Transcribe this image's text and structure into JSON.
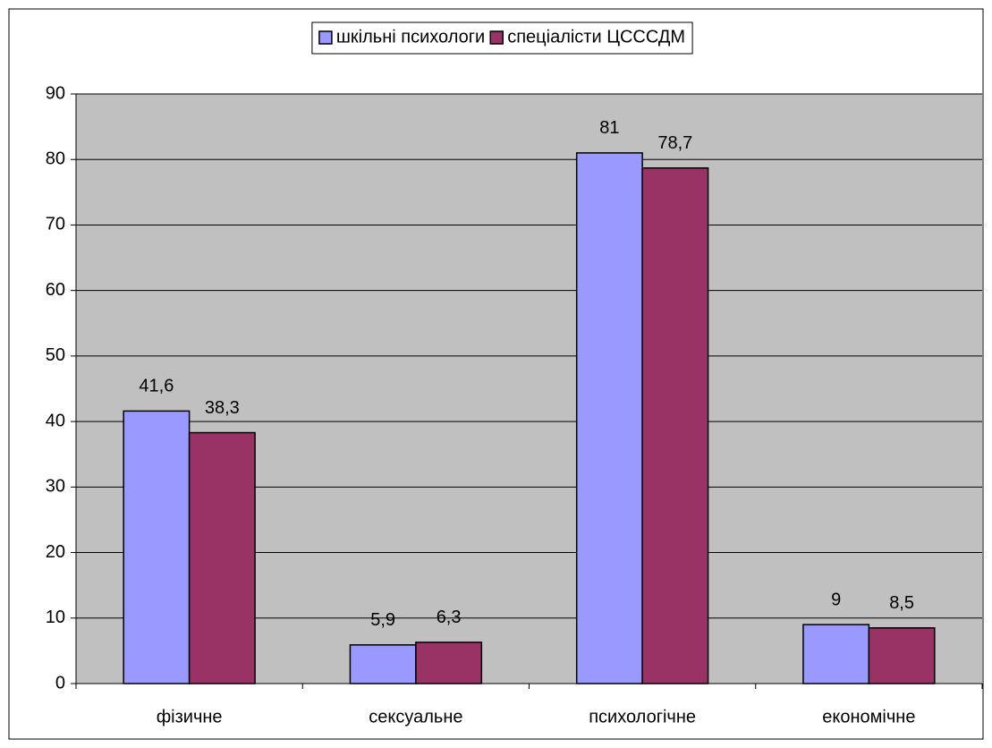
{
  "chart_data": {
    "type": "bar",
    "categories": [
      "фізичне",
      "сексуальне",
      "психологічне",
      "економічне"
    ],
    "series": [
      {
        "name": "шкільні психологи",
        "color": "#9999FF",
        "values": [
          41.6,
          5.9,
          81,
          9
        ],
        "value_labels": [
          "41,6",
          "5,9",
          "81",
          "9"
        ]
      },
      {
        "name": "спеціалісти ЦСССДМ",
        "color": "#993366",
        "values": [
          38.3,
          6.3,
          78.7,
          8.5
        ],
        "value_labels": [
          "38,3",
          "6,3",
          "78,7",
          "8,5"
        ]
      }
    ],
    "ylim": [
      0,
      90
    ],
    "yticks": [
      0,
      10,
      20,
      30,
      40,
      50,
      60,
      70,
      80,
      90
    ],
    "grid": true,
    "legend": "top"
  }
}
